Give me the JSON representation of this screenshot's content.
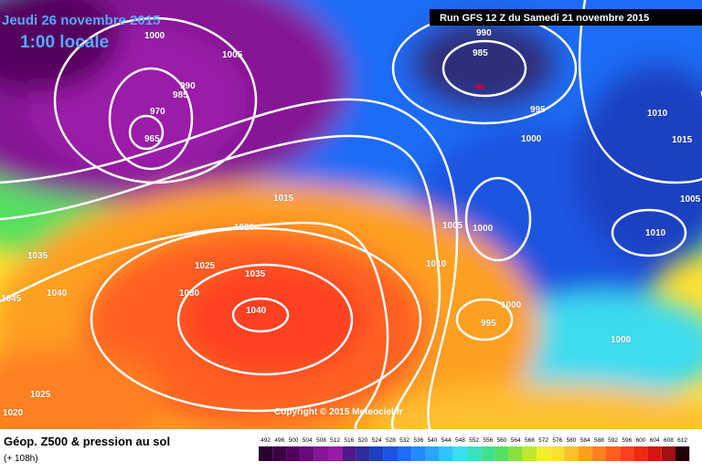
{
  "header": {
    "valid_date": "Jeudi 26 novembre 2015",
    "local_time": "1:00 locale",
    "run": "Run GFS 12 Z du Samedi 21 novembre 2015"
  },
  "isobar_labels": [
    "1000",
    "1005",
    "990",
    "985",
    "970",
    "965",
    "990",
    "985",
    "995",
    "1000",
    "1010",
    "1015",
    "1005",
    "1010",
    "1005",
    "1000",
    "1010",
    "1000",
    "995",
    "1000",
    "1015",
    "1020",
    "1025",
    "1035",
    "1030",
    "1040",
    "1035",
    "1040",
    "1045",
    "1025",
    "1020"
  ],
  "copyright": "Copyright © 2015 Meteociel.fr",
  "footer": {
    "title": "Géop. Z500 & pression au sol",
    "lead_time": "(+ 108h)"
  },
  "legend": {
    "levels": [
      492,
      496,
      500,
      504,
      508,
      512,
      516,
      520,
      524,
      528,
      532,
      536,
      540,
      544,
      548,
      552,
      556,
      560,
      564,
      568,
      572,
      576,
      580,
      584,
      588,
      592,
      596,
      600,
      604,
      608,
      612
    ],
    "colors": [
      "#2b0030",
      "#3d0045",
      "#55005f",
      "#6a0a7a",
      "#851594",
      "#9a1aa8",
      "#4d1a8c",
      "#2d2d9e",
      "#1e3fc2",
      "#1a55e0",
      "#1f6cf5",
      "#2288ff",
      "#2aa5ff",
      "#33c2ff",
      "#3ddcf0",
      "#3ee0c0",
      "#40e090",
      "#55e060",
      "#88e040",
      "#c0e830",
      "#f0f030",
      "#ffe030",
      "#ffc030",
      "#ffa020",
      "#ff8020",
      "#ff6020",
      "#ff4020",
      "#f02810",
      "#d01810",
      "#a01010",
      "#200000"
    ]
  }
}
